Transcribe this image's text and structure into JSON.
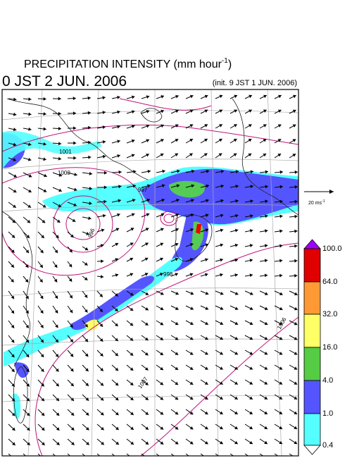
{
  "header": {
    "title": "PRECIPITATION INTENSITY (mm hour",
    "title_exponent": "-1",
    "title_close": ")",
    "valid_time": "0 JST 2 JUN. 2006",
    "init_time": "(init. 9 JST 1 JUN. 2006)"
  },
  "wind_scale": {
    "label": "20 ms",
    "exponent": "-1"
  },
  "colorbar": {
    "labels": [
      "100.0",
      "64.0",
      "32.0",
      "16.0",
      "4.0",
      "1.0",
      "0.4"
    ]
  },
  "contour_labels": [
    "1001",
    "1000",
    "997",
    "996",
    "998",
    "1006",
    "1007"
  ]
}
